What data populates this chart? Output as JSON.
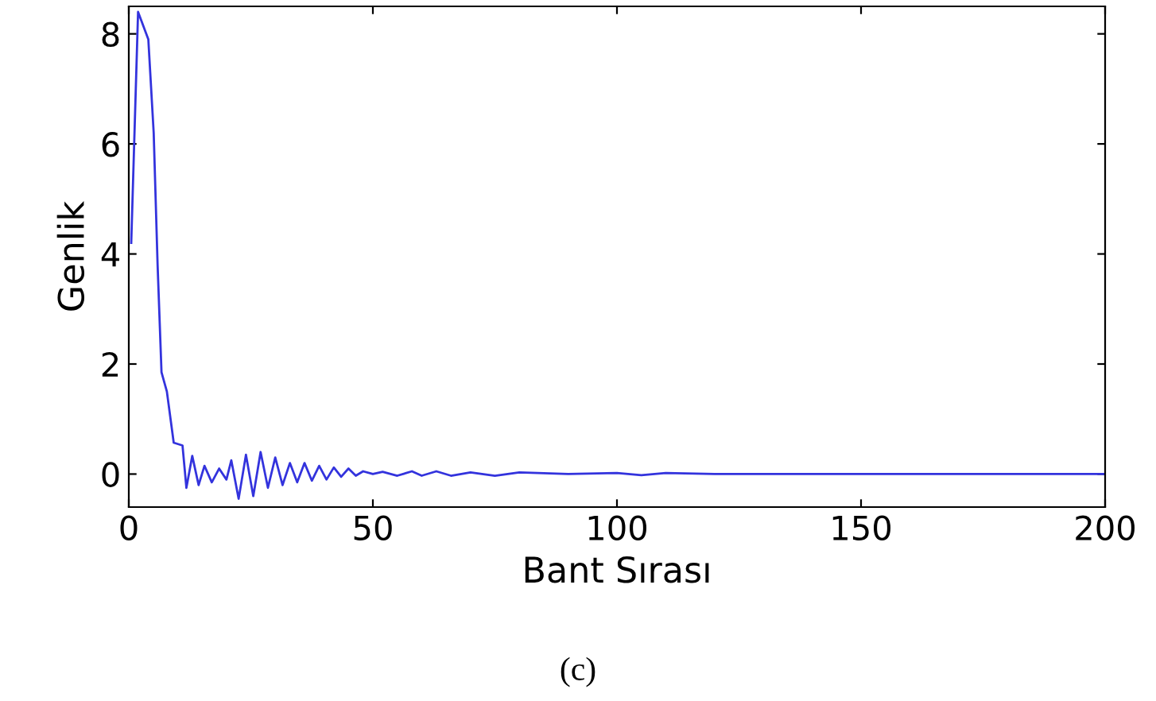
{
  "chart_data": {
    "type": "line",
    "xlabel": "Bant Sırası",
    "ylabel": "Genlik",
    "annotations": [
      "(c)"
    ],
    "x": [
      0.5,
      1.9,
      4.0,
      5.1,
      5.9,
      6.7,
      7.8,
      9.2,
      11.0,
      11.8,
      13,
      14.3,
      15.5,
      17,
      18.5,
      20,
      21,
      22.5,
      24,
      25.5,
      27,
      28.5,
      30,
      31.5,
      33,
      34.5,
      36,
      37.5,
      39,
      40.5,
      42,
      43.5,
      45,
      46.5,
      48,
      50,
      52,
      55,
      58,
      60,
      63,
      66,
      70,
      75,
      80,
      90,
      100,
      105,
      110,
      120,
      130,
      140,
      150,
      160,
      170,
      180,
      190,
      200
    ],
    "series": [
      {
        "color": "#3333dd",
        "values": [
          4.2,
          8.4,
          7.9,
          6.2,
          3.8,
          1.85,
          1.5,
          0.57,
          0.52,
          -0.25,
          0.33,
          -0.2,
          0.15,
          -0.15,
          0.1,
          -0.1,
          0.25,
          -0.45,
          0.35,
          -0.4,
          0.4,
          -0.25,
          0.3,
          -0.2,
          0.2,
          -0.15,
          0.2,
          -0.12,
          0.15,
          -0.1,
          0.12,
          -0.05,
          0.1,
          -0.03,
          0.05,
          0.0,
          0.04,
          -0.03,
          0.05,
          -0.03,
          0.05,
          -0.03,
          0.03,
          -0.03,
          0.03,
          0.0,
          0.02,
          -0.02,
          0.02,
          0.0,
          0.0,
          0.0,
          0.0,
          0.0,
          0.0,
          0.0,
          0.0,
          0.0
        ]
      }
    ],
    "xlim": [
      0,
      200
    ],
    "xticks": [
      0,
      50,
      100,
      150,
      200
    ],
    "ylim": [
      -0.6,
      8.5
    ],
    "yticks": [
      0,
      2,
      4,
      6,
      8
    ],
    "grid": false,
    "legend": false
  }
}
